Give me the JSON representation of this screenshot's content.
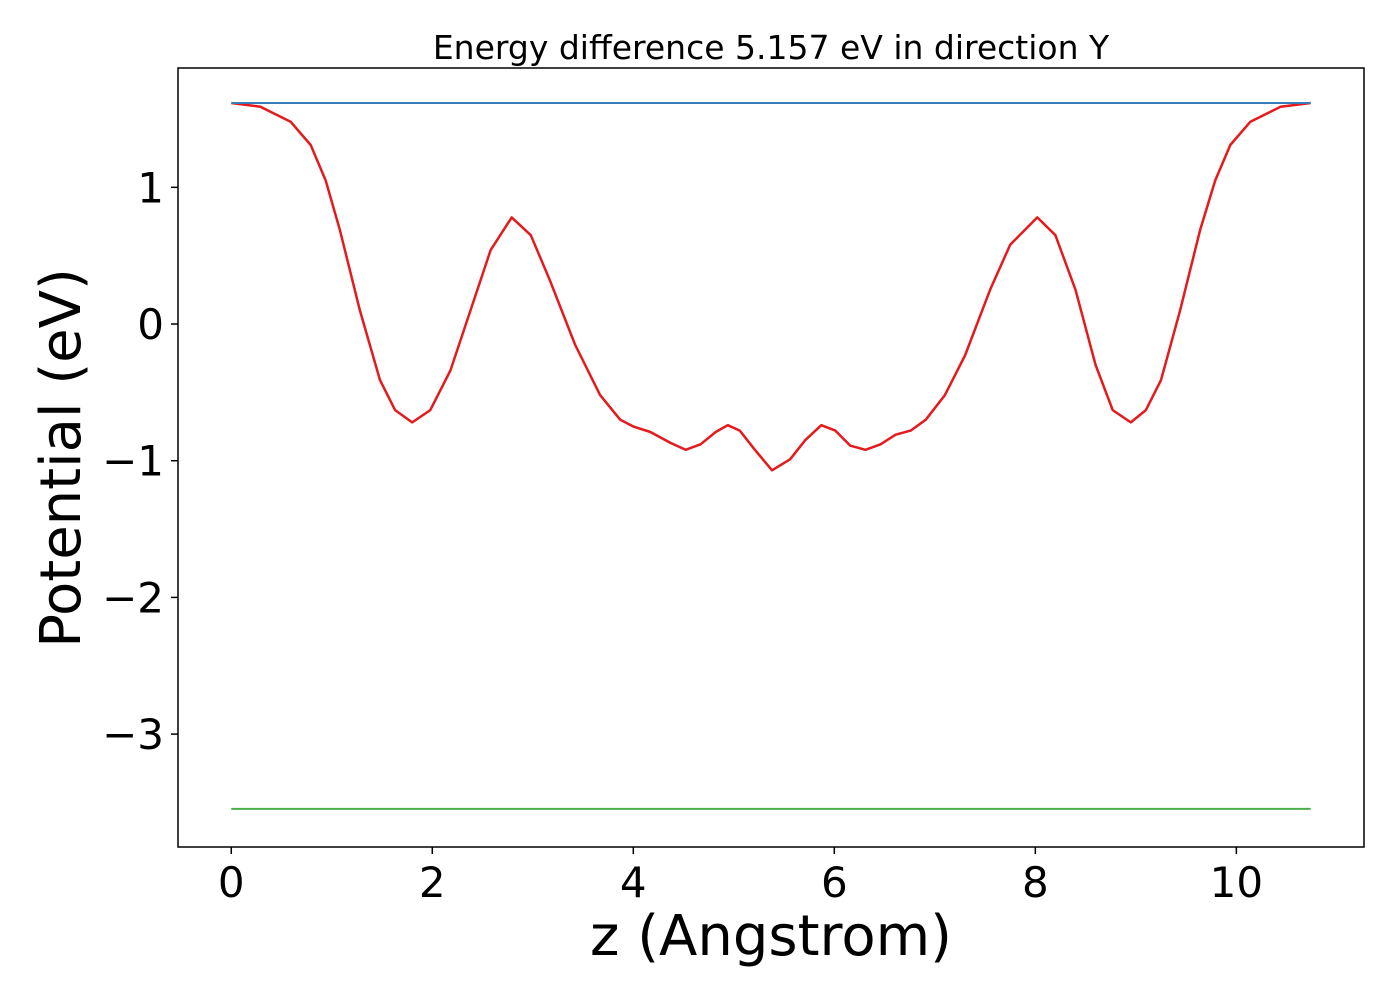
{
  "chart_data": {
    "type": "line",
    "title": "Energy difference 5.157 eV in direction Y",
    "xlabel": "z (Angstrom)",
    "ylabel": "Potential (eV)",
    "xlim": [
      -0.53,
      11.27
    ],
    "ylim": [
      -3.826,
      1.873
    ],
    "xticks": [
      0,
      2,
      4,
      6,
      8,
      10
    ],
    "xtick_labels": [
      "0",
      "2",
      "4",
      "6",
      "8",
      "10"
    ],
    "yticks": [
      1,
      0,
      -1,
      -2,
      -3
    ],
    "ytick_labels": [
      "1",
      "0",
      "−1",
      "−2",
      "−3"
    ],
    "grid": false,
    "series": [
      {
        "color": "#e41a1c",
        "x": [
          0,
          0.29,
          0.59,
          0.79,
          0.94,
          1.08,
          1.28,
          1.48,
          1.63,
          1.8,
          1.98,
          2.18,
          2.38,
          2.58,
          2.79,
          2.98,
          3.17,
          3.42,
          3.67,
          3.87,
          4.0,
          4.17,
          4.37,
          4.52,
          4.67,
          4.82,
          4.94,
          5.06,
          5.21,
          5.38,
          5.56,
          5.71,
          5.87,
          6.01,
          6.16,
          6.31,
          6.46,
          6.61,
          6.76,
          6.91,
          7.1,
          7.3,
          7.55,
          7.75,
          8.02,
          8.2,
          8.4,
          8.6,
          8.77,
          8.95,
          9.1,
          9.25,
          9.44,
          9.64,
          9.79,
          9.94,
          10.14,
          10.44,
          10.74
        ],
        "y": [
          1.617,
          1.59,
          1.48,
          1.31,
          1.05,
          0.69,
          0.1,
          -0.41,
          -0.63,
          -0.72,
          -0.63,
          -0.34,
          0.1,
          0.54,
          0.78,
          0.65,
          0.32,
          -0.15,
          -0.52,
          -0.7,
          -0.75,
          -0.79,
          -0.87,
          -0.92,
          -0.88,
          -0.79,
          -0.74,
          -0.78,
          -0.92,
          -1.07,
          -0.99,
          -0.85,
          -0.74,
          -0.78,
          -0.89,
          -0.92,
          -0.88,
          -0.81,
          -0.78,
          -0.7,
          -0.52,
          -0.23,
          0.25,
          0.58,
          0.78,
          0.65,
          0.25,
          -0.3,
          -0.63,
          -0.72,
          -0.63,
          -0.41,
          0.1,
          0.69,
          1.05,
          1.31,
          1.48,
          1.59,
          1.617
        ]
      },
      {
        "color": "#377eb8",
        "x": [
          0,
          10.74
        ],
        "y": [
          1.617,
          1.617
        ]
      },
      {
        "color": "#4daf4a",
        "x": [
          0,
          10.74
        ],
        "y": [
          -3.547,
          -3.547
        ]
      }
    ]
  }
}
